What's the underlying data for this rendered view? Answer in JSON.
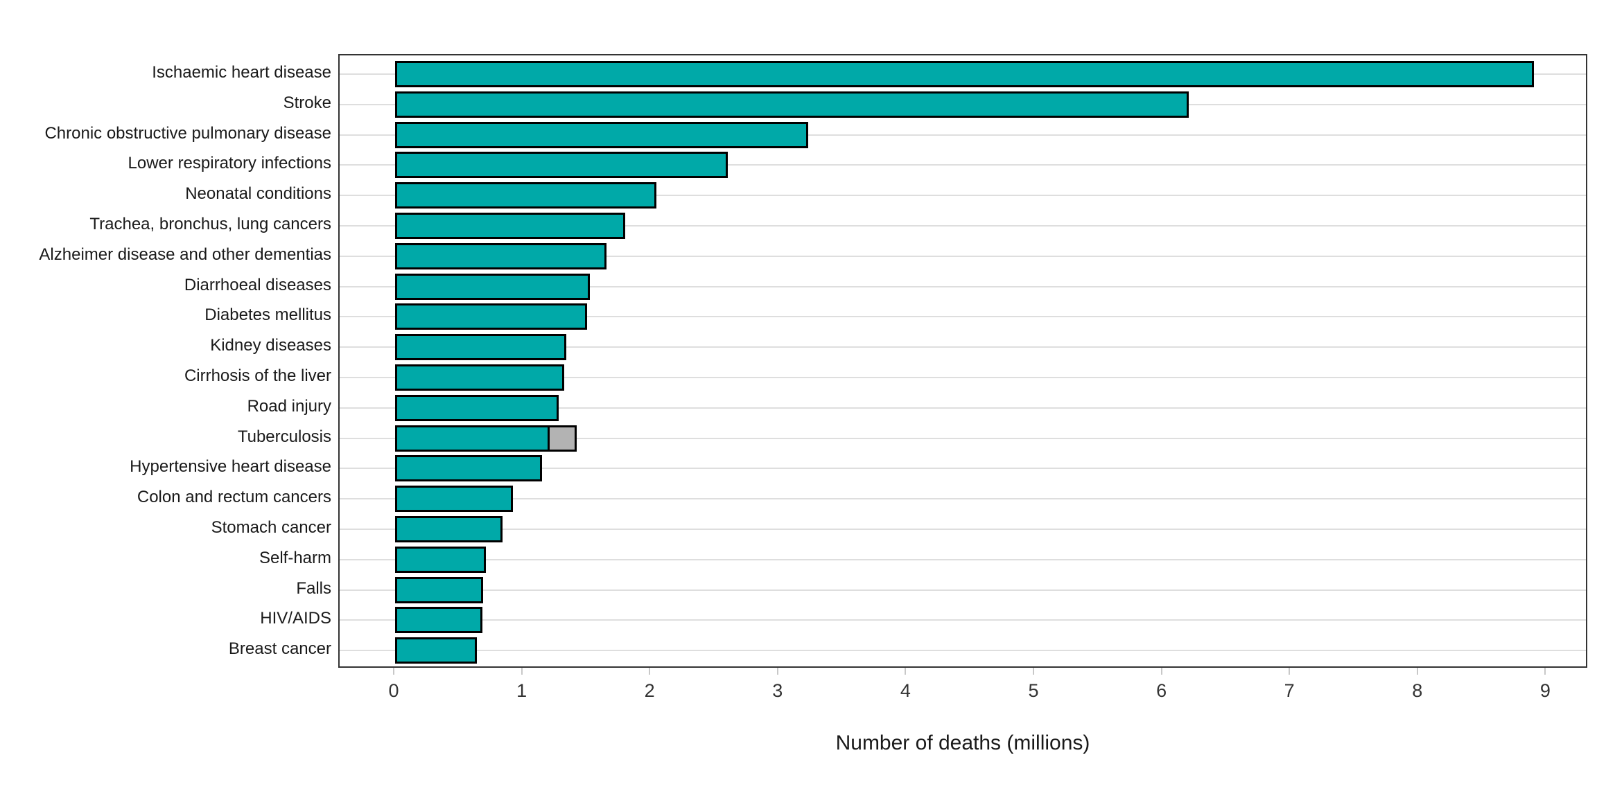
{
  "chart_data": {
    "type": "bar",
    "orientation": "horizontal",
    "title": "",
    "xlabel": "Number of deaths (millions)",
    "ylabel": "",
    "categories": [
      "Ischaemic heart disease",
      "Stroke",
      "Chronic obstructive pulmonary disease",
      "Lower respiratory infections",
      "Neonatal conditions",
      "Trachea, bronchus, lung cancers",
      "Alzheimer disease and other dementias",
      "Diarrhoeal diseases",
      "Diabetes mellitus",
      "Kidney diseases",
      "Cirrhosis of the liver",
      "Road injury",
      "Tuberculosis",
      "Hypertensive heart disease",
      "Colon and rectum cancers",
      "Stomach cancer",
      "Self-harm",
      "Falls",
      "HIV/AIDS",
      "Breast cancer"
    ],
    "values": [
      8.9,
      6.2,
      3.23,
      2.6,
      2.04,
      1.8,
      1.65,
      1.52,
      1.5,
      1.34,
      1.32,
      1.28,
      1.21,
      1.15,
      0.92,
      0.84,
      0.71,
      0.69,
      0.68,
      0.64
    ],
    "secondary_segments": [
      {
        "category": "Tuberculosis",
        "category_index": 12,
        "start_value": 1.21,
        "end_value": 1.42
      }
    ],
    "xticks": [
      "0",
      "1",
      "2",
      "3",
      "4",
      "5",
      "6",
      "7",
      "8",
      "9"
    ],
    "xlim": [
      -0.44,
      9.33
    ],
    "grid": "horizontal category gridlines only",
    "legend": "none",
    "colors": {
      "bar_fill": "#00A9A8",
      "bar_border": "#000000",
      "secondary_fill": "#B3B3B3",
      "gridline": "#DEDEDE",
      "panel_border": "#333333",
      "tick_mark": "#C8C8C8",
      "text": "#1A1A1A"
    }
  }
}
